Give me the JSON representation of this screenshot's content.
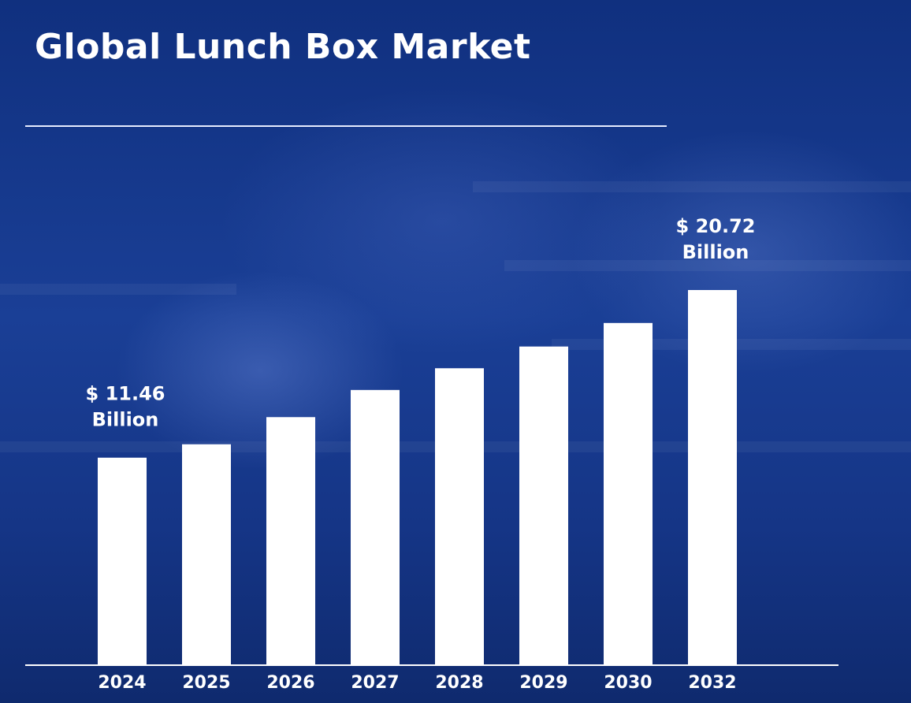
{
  "title": "Global Lunch Box Market",
  "colors": {
    "background": "#1a3f96",
    "bar": "#ffffff",
    "text": "#ffffff"
  },
  "chart_data": {
    "type": "bar",
    "title": "Global Lunch Box Market",
    "categories": [
      "2024",
      "2025",
      "2026",
      "2027",
      "2028",
      "2029",
      "2030",
      "2032"
    ],
    "values": [
      11.46,
      12.2,
      13.7,
      15.2,
      16.4,
      17.6,
      18.9,
      20.72
    ],
    "data_labels": [
      {
        "index": 0,
        "lines": [
          "$ 11.46",
          "Billion"
        ]
      },
      {
        "index": 7,
        "lines": [
          "$ 20.72",
          "Billion"
        ]
      }
    ],
    "xlabel": "",
    "ylabel": "",
    "ylim": [
      0,
      20.72
    ],
    "grid": false,
    "legend": "none"
  }
}
